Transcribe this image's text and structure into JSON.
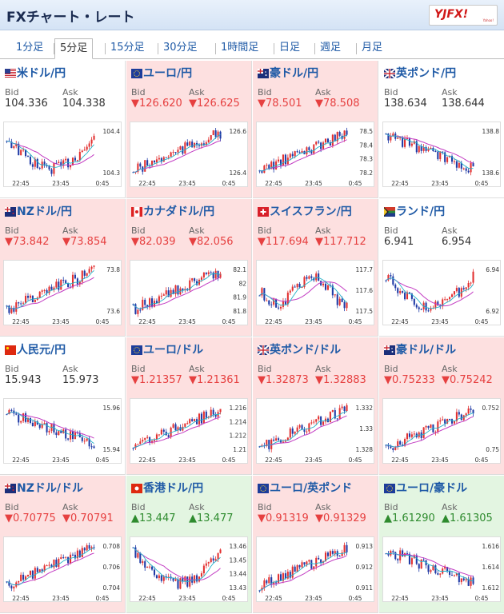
{
  "header": {
    "title": "FXチャート・レート",
    "logo": "YJFX!",
    "logo_sub": "Yahoo!"
  },
  "tabs": [
    {
      "label": "1分足",
      "active": false
    },
    {
      "label": "5分足",
      "active": true
    },
    {
      "label": "15分足",
      "active": false
    },
    {
      "label": "30分足",
      "active": false
    },
    {
      "label": "1時間足",
      "active": false
    },
    {
      "label": "日足",
      "active": false
    },
    {
      "label": "週足",
      "active": false
    },
    {
      "label": "月足",
      "active": false
    }
  ],
  "bid_label": "Bid",
  "ask_label": "Ask",
  "x_ticks": [
    "22:45",
    "23:45",
    "0:45"
  ],
  "colors": {
    "up_candle": "#e23030",
    "down_candle": "#1f3aa6",
    "ma_line": "#c23ac2",
    "ma_short": "#24b2c8"
  },
  "pairs": [
    {
      "name": "米ドル/円",
      "flag": "us",
      "bg": "white",
      "dir": "neu",
      "bid": "104.336",
      "ask": "104.338",
      "ticks": [
        "104.4",
        "104.3"
      ],
      "trend": "downup"
    },
    {
      "name": "ユーロ/円",
      "flag": "eu",
      "bg": "pink",
      "dir": "down",
      "bid": "126.620",
      "ask": "126.625",
      "ticks": [
        "126.6",
        "126.4"
      ],
      "trend": "up"
    },
    {
      "name": "豪ドル/円",
      "flag": "au",
      "bg": "pink",
      "dir": "down",
      "bid": "78.501",
      "ask": "78.508",
      "ticks": [
        "78.5",
        "78.4",
        "78.3",
        "78.2"
      ],
      "trend": "up"
    },
    {
      "name": "英ポンド/円",
      "flag": "uk",
      "bg": "white",
      "dir": "neu",
      "bid": "138.634",
      "ask": "138.644",
      "ticks": [
        "138.8",
        "138.6"
      ],
      "trend": "down"
    },
    {
      "name": "NZドル/円",
      "flag": "nz",
      "bg": "pink",
      "dir": "down",
      "bid": "73.842",
      "ask": "73.854",
      "ticks": [
        "73.8",
        "73.6"
      ],
      "trend": "up"
    },
    {
      "name": "カナダドル/円",
      "flag": "ca",
      "bg": "pink",
      "dir": "down",
      "bid": "82.039",
      "ask": "82.056",
      "ticks": [
        "82.1",
        "82",
        "81.9",
        "81.8"
      ],
      "trend": "up"
    },
    {
      "name": "スイスフラン/円",
      "flag": "ch",
      "bg": "pink",
      "dir": "down",
      "bid": "117.694",
      "ask": "117.712",
      "ticks": [
        "117.7",
        "117.6",
        "117.5"
      ],
      "trend": "flat"
    },
    {
      "name": "ランド/円",
      "flag": "za",
      "bg": "white",
      "dir": "neu",
      "bid": "6.941",
      "ask": "6.954",
      "ticks": [
        "6.94",
        "6.92"
      ],
      "trend": "downup"
    },
    {
      "name": "人民元/円",
      "flag": "cn",
      "bg": "white",
      "dir": "neu",
      "bid": "15.943",
      "ask": "15.973",
      "ticks": [
        "15.96",
        "15.94"
      ],
      "trend": "down"
    },
    {
      "name": "ユーロ/ドル",
      "flag": "eu",
      "bg": "pink",
      "dir": "down",
      "bid": "1.21357",
      "ask": "1.21361",
      "ticks": [
        "1.216",
        "1.214",
        "1.212",
        "1.21"
      ],
      "trend": "up"
    },
    {
      "name": "英ポンド/ドル",
      "flag": "uk",
      "bg": "pink",
      "dir": "down",
      "bid": "1.32873",
      "ask": "1.32883",
      "ticks": [
        "1.332",
        "1.33",
        "1.328"
      ],
      "trend": "up"
    },
    {
      "name": "豪ドル/ドル",
      "flag": "au",
      "bg": "pink",
      "dir": "down",
      "bid": "0.75233",
      "ask": "0.75242",
      "ticks": [
        "0.752",
        "0.75"
      ],
      "trend": "up"
    },
    {
      "name": "NZドル/ドル",
      "flag": "nz",
      "bg": "pink",
      "dir": "down",
      "bid": "0.70775",
      "ask": "0.70791",
      "ticks": [
        "0.708",
        "0.706",
        "0.704"
      ],
      "trend": "up"
    },
    {
      "name": "香港ドル/円",
      "flag": "hk",
      "bg": "green",
      "dir": "up",
      "bid": "13.447",
      "ask": "13.477",
      "ticks": [
        "13.46",
        "13.45",
        "13.44",
        "13.43"
      ],
      "trend": "downup"
    },
    {
      "name": "ユーロ/英ポンド",
      "flag": "eu",
      "bg": "pink",
      "dir": "down",
      "bid": "0.91319",
      "ask": "0.91329",
      "ticks": [
        "0.913",
        "0.912",
        "0.911"
      ],
      "trend": "up"
    },
    {
      "name": "ユーロ/豪ドル",
      "flag": "eu",
      "bg": "green",
      "dir": "up",
      "bid": "1.61290",
      "ask": "1.61305",
      "ticks": [
        "1.616",
        "1.614",
        "1.612"
      ],
      "trend": "down"
    }
  ]
}
